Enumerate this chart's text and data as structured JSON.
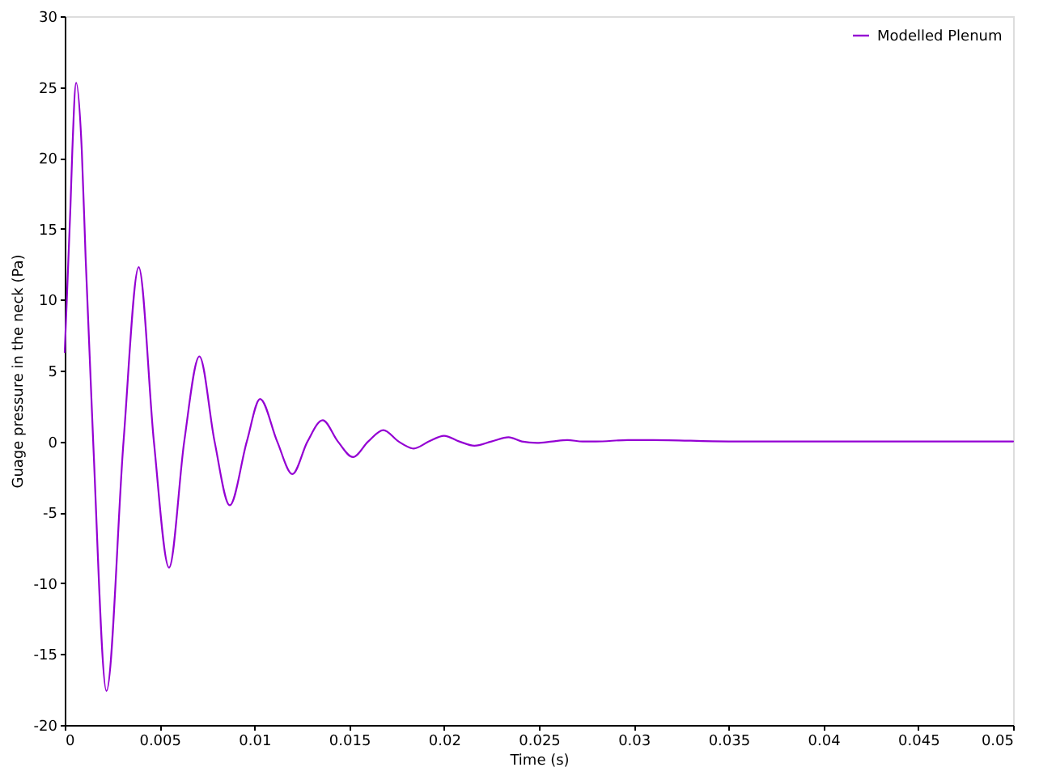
{
  "chart_data": {
    "type": "line",
    "xlabel": "Time (s)",
    "ylabel": "Guage pressure in the neck (Pa)",
    "x": [
      0,
      0.0003,
      0.0004,
      0.0006,
      0.0009,
      0.0011,
      0.0015,
      0.0022,
      0.0031,
      0.0039,
      0.0047,
      0.0055,
      0.0063,
      0.0071,
      0.0079,
      0.0087,
      0.0096,
      0.0103,
      0.0112,
      0.012,
      0.0128,
      0.0136,
      0.0144,
      0.0152,
      0.016,
      0.0168,
      0.0176,
      0.0184,
      0.0192,
      0.02,
      0.0208,
      0.0216,
      0.0225,
      0.0234,
      0.0241,
      0.0249,
      0.0257,
      0.0265,
      0.0273,
      0.028,
      0.0297,
      0.031,
      0.035,
      0.04,
      0.045,
      0.05
    ],
    "series": [
      {
        "name": "Modelled Plenum",
        "color": "#9400d3",
        "values": [
          6.3,
          16.5,
          20.5,
          25.3,
          20.5,
          13,
          0,
          -17.6,
          0,
          12.3,
          0,
          -8.9,
          0,
          6,
          0,
          -4.5,
          0,
          3,
          0,
          -2.3,
          0,
          1.5,
          0,
          -1.1,
          0,
          0.8,
          0,
          -0.5,
          0,
          0.4,
          0,
          -0.3,
          0,
          0.3,
          0,
          -0.1,
          0,
          0.1,
          0,
          0,
          0.1,
          0.1,
          0,
          0,
          0,
          0
        ]
      }
    ],
    "xlim": [
      0,
      0.05
    ],
    "xticks": [
      0,
      0.005,
      0.01,
      0.015,
      0.02,
      0.025,
      0.03,
      0.035,
      0.04,
      0.045,
      0.05
    ],
    "ylim": [
      -20,
      30
    ],
    "yticks": [
      -20,
      -15,
      -10,
      -5,
      0,
      5,
      10,
      15,
      20,
      25,
      30
    ],
    "grid": false,
    "legend": "top right"
  }
}
